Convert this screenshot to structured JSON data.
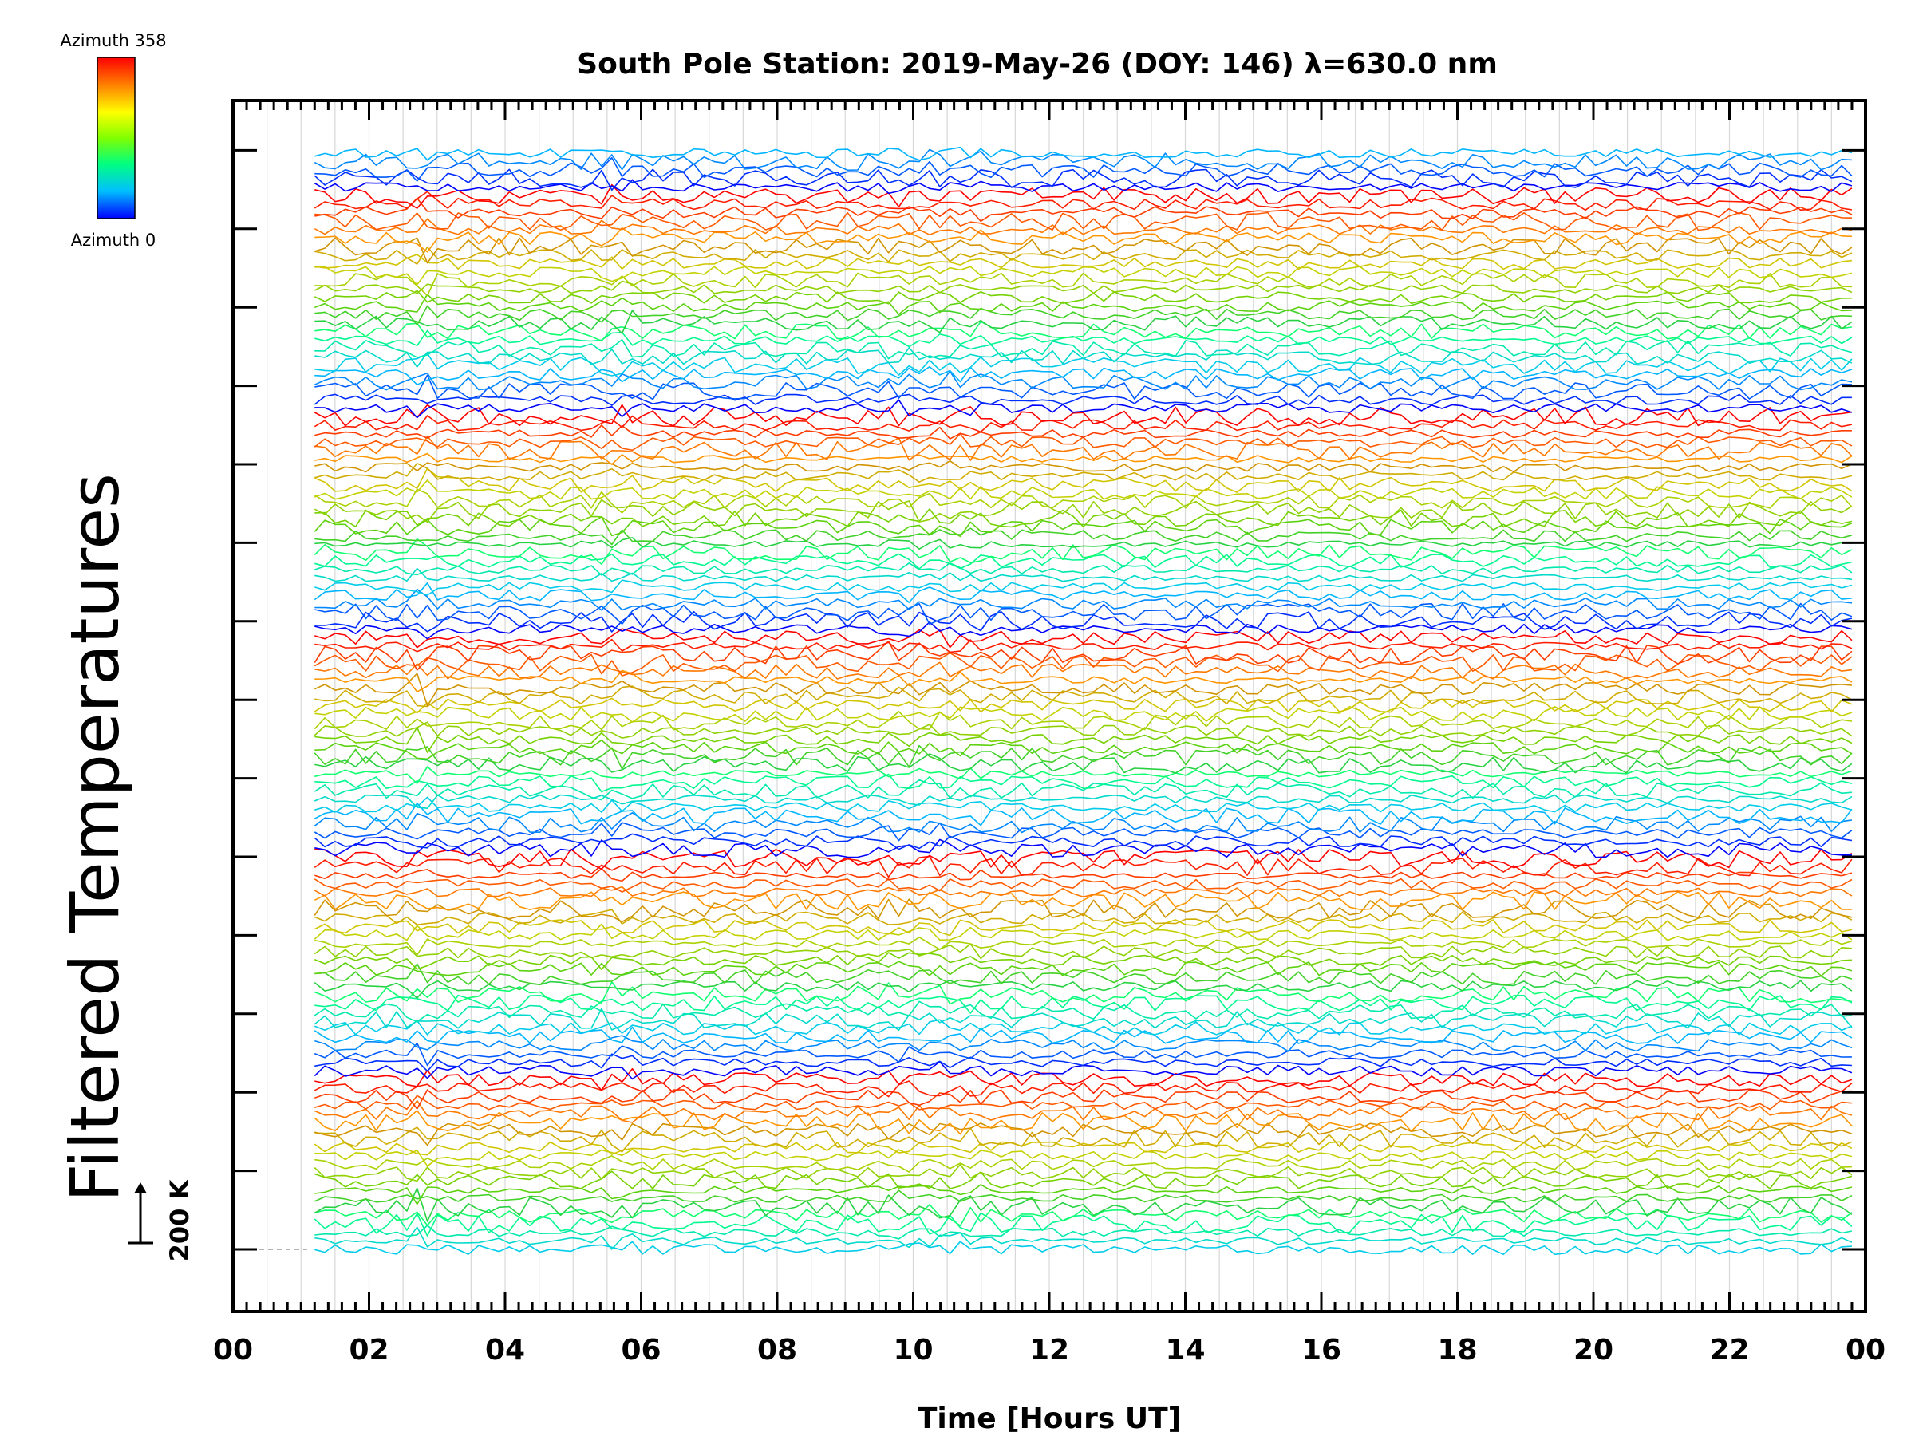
{
  "chart_data": {
    "type": "line",
    "title": "South Pole Station: 2019-May-26 (DOY: 146) λ=630.0 nm",
    "xlabel": "Time [Hours UT]",
    "ylabel": "Filtered Temperatures",
    "x_ticks": [
      "00",
      "02",
      "04",
      "06",
      "08",
      "10",
      "12",
      "14",
      "16",
      "18",
      "20",
      "22",
      "00"
    ],
    "xlim": [
      0,
      24
    ],
    "data_x_range": [
      1.2,
      23.8
    ],
    "grid": "vertical",
    "series_count": 130,
    "series_note": "130 stacked filtered temperature traces, one per azimuth, colored by azimuth",
    "colorbar": {
      "top_label": "Azimuth 358",
      "bottom_label": "Azimuth 0",
      "colors": [
        "#ff0000",
        "#ff8000",
        "#ffff00",
        "#80ff00",
        "#00ff80",
        "#00c0ff",
        "#0000ff"
      ]
    },
    "scale_bar": {
      "label": "200 K"
    }
  }
}
